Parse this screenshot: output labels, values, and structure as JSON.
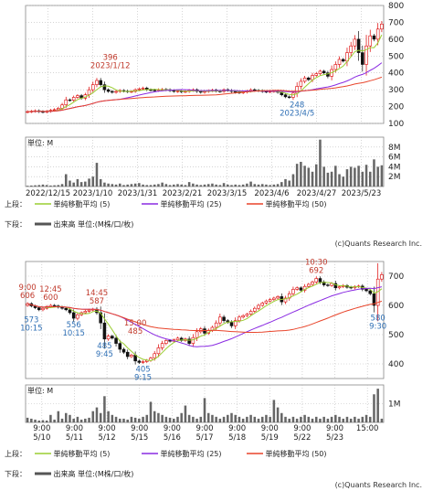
{
  "colors": {
    "candle_up": "#dd0000",
    "candle_down": "#111111",
    "ma5": "#9acd32",
    "ma25": "#8a2be2",
    "ma50": "#e8442a",
    "volume": "#666666",
    "grid": "#bbbbbb"
  },
  "credit": "(c)Quants Research Inc.",
  "chart_data": [
    {
      "type": "candlestick",
      "period": "daily",
      "x_labels": [
        "2022/12/15",
        "2023/1/10",
        "2023/1/31",
        "2023/2/21",
        "2023/3/15",
        "2023/4/6",
        "2023/4/27",
        "2023/5/23"
      ],
      "y_ticks": [
        100,
        200,
        300,
        400,
        500,
        600,
        700,
        800
      ],
      "ylim": [
        100,
        800
      ],
      "annotations": [
        {
          "text": "2023/1/12",
          "x": 21.5,
          "y": 396,
          "side": "top"
        },
        {
          "text": "396",
          "x": 21.5,
          "y": 396,
          "side": "top2"
        },
        {
          "text": "248",
          "x": 70,
          "y": 248,
          "side": "bottom"
        },
        {
          "text": "2023/4/5",
          "x": 70,
          "y": 248,
          "side": "bottom2"
        }
      ],
      "close": [
        170,
        172,
        175,
        170,
        168,
        172,
        178,
        182,
        190,
        210,
        240,
        238,
        255,
        265,
        250,
        270,
        300,
        330,
        355,
        330,
        300,
        290,
        285,
        290,
        295,
        292,
        288,
        290,
        300,
        305,
        310,
        300,
        298,
        296,
        300,
        302,
        300,
        295,
        290,
        292,
        288,
        290,
        296,
        300,
        290,
        285,
        290,
        294,
        298,
        292,
        290,
        300,
        296,
        290,
        285,
        282,
        286,
        292,
        300,
        296,
        294,
        290,
        288,
        290,
        292,
        285,
        270,
        258,
        255,
        280,
        320,
        350,
        370,
        360,
        385,
        395,
        410,
        400,
        380,
        420,
        450,
        480,
        470,
        520,
        560,
        600,
        520,
        450,
        560,
        620,
        600,
        660,
        690
      ],
      "volume": [
        0.15,
        0.2,
        0.25,
        0.3,
        0.4,
        0.3,
        0.2,
        0.25,
        0.3,
        0.5,
        2.5,
        1.2,
        0.8,
        1.5,
        0.9,
        1.0,
        1.6,
        2.0,
        4.8,
        1.5,
        0.8,
        0.6,
        0.5,
        0.4,
        0.6,
        0.3,
        0.4,
        0.5,
        0.6,
        0.7,
        0.4,
        0.3,
        0.3,
        0.4,
        0.5,
        0.8,
        0.5,
        0.3,
        0.4,
        0.5,
        0.4,
        0.3,
        0.9,
        0.6,
        0.4,
        0.3,
        0.4,
        0.5,
        0.6,
        0.4,
        0.3,
        0.7,
        0.4,
        0.3,
        0.4,
        0.3,
        0.4,
        0.6,
        1.0,
        0.5,
        0.4,
        0.5,
        0.4,
        0.3,
        0.4,
        0.5,
        0.9,
        1.5,
        1.2,
        2.5,
        4.6,
        5.0,
        4.2,
        3.8,
        3.0,
        4.5,
        9.5,
        4.0,
        2.8,
        3.0,
        4.2,
        2.5,
        2.0,
        3.5,
        4.0,
        3.8,
        4.2,
        3.0,
        4.4,
        3.0,
        5.5,
        4.0,
        4.3
      ],
      "volume_ticks": [
        "2M",
        "4M",
        "6M",
        "8M"
      ],
      "volume_unit": "単位: M"
    },
    {
      "type": "candlestick",
      "period": "intraday",
      "x_labels": [
        {
          "time": "9:00",
          "date": "5/10"
        },
        {
          "time": "9:00",
          "date": "5/11"
        },
        {
          "time": "9:00",
          "date": "5/12"
        },
        {
          "time": "9:00",
          "date": "5/15"
        },
        {
          "time": "9:00",
          "date": "5/16"
        },
        {
          "time": "9:00",
          "date": "5/17"
        },
        {
          "time": "9:00",
          "date": "5/18"
        },
        {
          "time": "9:00",
          "date": "5/19"
        },
        {
          "time": "9:00",
          "date": "5/22"
        },
        {
          "time": "9:00",
          "date": "5/23"
        },
        {
          "time": "15:00",
          "date": ""
        }
      ],
      "y_ticks": [
        400,
        500,
        600,
        700
      ],
      "ylim": [
        350,
        750
      ],
      "annotations": [
        {
          "text": "9:00",
          "x": 0,
          "y": 606,
          "side": "top2"
        },
        {
          "text": "606",
          "x": 0,
          "y": 606,
          "side": "top"
        },
        {
          "text": "12:45",
          "x": 6,
          "y": 600,
          "side": "top2"
        },
        {
          "text": "600",
          "x": 6,
          "y": 600,
          "side": "top"
        },
        {
          "text": "573",
          "x": 1,
          "y": 573,
          "side": "bottom"
        },
        {
          "text": "10:15",
          "x": 1,
          "y": 573,
          "side": "bottom2"
        },
        {
          "text": "556",
          "x": 12,
          "y": 556,
          "side": "bottom"
        },
        {
          "text": "10:15",
          "x": 12,
          "y": 556,
          "side": "bottom2"
        },
        {
          "text": "14:45",
          "x": 18,
          "y": 587,
          "side": "top2"
        },
        {
          "text": "587",
          "x": 18,
          "y": 587,
          "side": "top"
        },
        {
          "text": "15:00",
          "x": 28,
          "y": 485,
          "side": "top2"
        },
        {
          "text": "485",
          "x": 28,
          "y": 485,
          "side": "top"
        },
        {
          "text": "485",
          "x": 20,
          "y": 485,
          "side": "bottom"
        },
        {
          "text": "9:45",
          "x": 20,
          "y": 485,
          "side": "bottom2"
        },
        {
          "text": "405",
          "x": 30,
          "y": 405,
          "side": "bottom"
        },
        {
          "text": "9:15",
          "x": 30,
          "y": 405,
          "side": "bottom2"
        },
        {
          "text": "10:30",
          "x": 75,
          "y": 692,
          "side": "top2"
        },
        {
          "text": "692",
          "x": 75,
          "y": 692,
          "side": "top"
        },
        {
          "text": "580",
          "x": 91,
          "y": 580,
          "side": "bottom"
        },
        {
          "text": "9:30",
          "x": 91,
          "y": 580,
          "side": "bottom2"
        }
      ],
      "close": [
        606,
        598,
        592,
        585,
        590,
        596,
        600,
        598,
        594,
        590,
        585,
        575,
        556,
        568,
        575,
        580,
        584,
        587,
        575,
        540,
        485,
        495,
        488,
        470,
        450,
        440,
        425,
        430,
        410,
        405,
        408,
        412,
        420,
        435,
        455,
        470,
        480,
        478,
        482,
        488,
        480,
        485,
        470,
        490,
        510,
        520,
        505,
        515,
        525,
        540,
        560,
        548,
        542,
        530,
        548,
        560,
        565,
        570,
        580,
        590,
        600,
        608,
        615,
        620,
        625,
        630,
        612,
        625,
        640,
        655,
        660,
        652,
        665,
        672,
        680,
        692,
        680,
        670,
        668,
        675,
        660,
        664,
        668,
        662,
        660,
        664,
        666,
        655,
        650,
        640,
        600,
        690,
        705
      ],
      "volume": [
        0.25,
        0.2,
        0.15,
        0.1,
        0.12,
        0.1,
        0.4,
        0.15,
        0.6,
        0.2,
        0.5,
        0.4,
        0.2,
        0.3,
        0.15,
        0.2,
        0.25,
        0.6,
        0.8,
        0.5,
        1.4,
        0.6,
        0.4,
        0.3,
        0.2,
        0.2,
        0.15,
        0.3,
        0.25,
        0.2,
        0.3,
        0.4,
        1.1,
        0.6,
        0.5,
        0.4,
        0.3,
        0.25,
        0.2,
        0.3,
        0.5,
        0.9,
        0.4,
        0.3,
        0.2,
        0.3,
        1.3,
        0.5,
        0.4,
        0.3,
        0.2,
        0.3,
        0.4,
        0.5,
        0.4,
        0.3,
        0.2,
        0.3,
        0.4,
        0.3,
        0.2,
        0.3,
        0.4,
        0.3,
        1.2,
        0.8,
        0.5,
        0.3,
        0.2,
        0.3,
        0.2,
        0.3,
        0.4,
        0.3,
        0.2,
        0.3,
        0.2,
        0.3,
        0.2,
        0.3,
        0.4,
        0.3,
        0.2,
        0.3,
        0.2,
        0.3,
        0.2,
        0.3,
        0.4,
        0.3,
        1.5,
        1.8,
        0.2
      ],
      "volume_ticks": [
        "1M"
      ],
      "volume_unit": "単位: M"
    }
  ],
  "legend": {
    "upper": "上段：",
    "lower": "下段：",
    "ma5": "単純移動平均 (5)",
    "ma25": "単純移動平均 (25)",
    "ma50": "単純移動平均 (50)",
    "volume": "出来高 単位:(M株/口/枚)"
  }
}
